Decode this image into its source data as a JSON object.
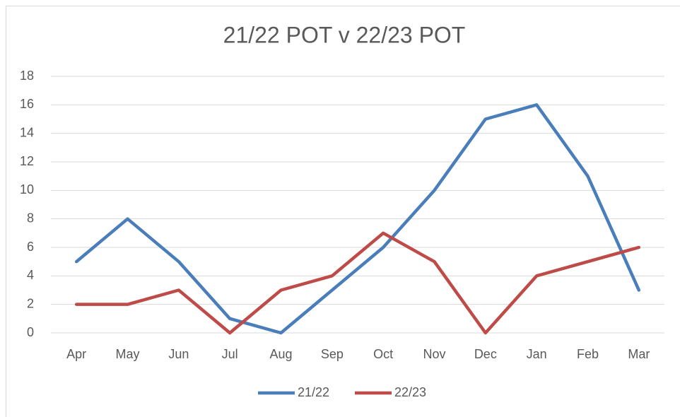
{
  "chart_data": {
    "type": "line",
    "title": "21/22 POT v 22/23 POT",
    "categories": [
      "Apr",
      "May",
      "Jun",
      "Jul",
      "Aug",
      "Sep",
      "Oct",
      "Nov",
      "Dec",
      "Jan",
      "Feb",
      "Mar"
    ],
    "series": [
      {
        "name": "21/22",
        "color": "#4a7ebb",
        "values": [
          5,
          8,
          5,
          1,
          0,
          3,
          6,
          10,
          15,
          16,
          11,
          3
        ]
      },
      {
        "name": "22/23",
        "color": "#be4b48",
        "values": [
          2,
          2,
          3,
          0,
          3,
          4,
          7,
          5,
          0,
          4,
          5,
          6
        ]
      }
    ],
    "ylim": [
      0,
      18
    ],
    "yticks": [
      0,
      2,
      4,
      6,
      8,
      10,
      12,
      14,
      16,
      18
    ],
    "grid": true,
    "legend": "bottom"
  }
}
